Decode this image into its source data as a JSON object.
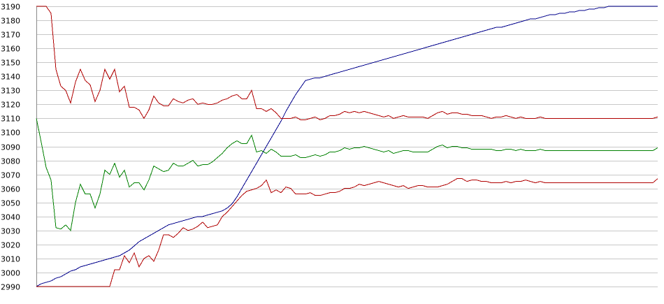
{
  "chart_data": {
    "type": "line",
    "title": "",
    "xlabel": "",
    "ylabel": "",
    "ylim": [
      2990,
      3190
    ],
    "yticks": [
      2990,
      3000,
      3010,
      3020,
      3030,
      3040,
      3050,
      3060,
      3070,
      3080,
      3090,
      3100,
      3110,
      3120,
      3130,
      3140,
      3150,
      3160,
      3170,
      3180,
      3190
    ],
    "grid": true,
    "legend": "none",
    "x": [
      0,
      1,
      2,
      3,
      4,
      5,
      6,
      7,
      8,
      9,
      10,
      11,
      12,
      13,
      14,
      15,
      16,
      17,
      18,
      19,
      20,
      21,
      22,
      23,
      24,
      25,
      26,
      27,
      28,
      29,
      30,
      31,
      32,
      33,
      34,
      35,
      36,
      37,
      38,
      39,
      40,
      41,
      42,
      43,
      44,
      45,
      46,
      47,
      48,
      49,
      50,
      51,
      52,
      53,
      54,
      55,
      56,
      57,
      58,
      59,
      60,
      61,
      62,
      63,
      64,
      65,
      66,
      67,
      68,
      69,
      70,
      71,
      72,
      73,
      74,
      75,
      76,
      77,
      78,
      79,
      80,
      81,
      82,
      83,
      84,
      85,
      86,
      87,
      88,
      89,
      90,
      91,
      92,
      93,
      94,
      95,
      96,
      97,
      98,
      99,
      100,
      101,
      102,
      103,
      104,
      105,
      106,
      107,
      108,
      109,
      110,
      111,
      112,
      113,
      114,
      115,
      116,
      117,
      118,
      119,
      120,
      121,
      122,
      123,
      124,
      125,
      126,
      127
    ],
    "series": [
      {
        "color": "#00008b",
        "values": [
          2990,
          2992,
          2993,
          2994,
          2996,
          2997,
          2999,
          3001,
          3002,
          3004,
          3005,
          3006,
          3007,
          3008,
          3009,
          3010,
          3011,
          3012,
          3014,
          3016,
          3019,
          3022,
          3024,
          3026,
          3028,
          3030,
          3032,
          3034,
          3035,
          3036,
          3037,
          3038,
          3039,
          3040,
          3040,
          3041,
          3042,
          3043,
          3044,
          3046,
          3049,
          3054,
          3060,
          3066,
          3072,
          3078,
          3084,
          3090,
          3096,
          3102,
          3108,
          3115,
          3121,
          3127,
          3132,
          3137,
          3138,
          3139,
          3139,
          3140,
          3141,
          3142,
          3143,
          3144,
          3145,
          3146,
          3147,
          3148,
          3149,
          3150,
          3151,
          3152,
          3153,
          3154,
          3155,
          3156,
          3157,
          3158,
          3159,
          3160,
          3161,
          3162,
          3163,
          3164,
          3165,
          3166,
          3167,
          3168,
          3169,
          3170,
          3171,
          3172,
          3173,
          3174,
          3175,
          3175,
          3176,
          3177,
          3178,
          3179,
          3180,
          3181,
          3181,
          3182,
          3183,
          3184,
          3184,
          3185,
          3185,
          3186,
          3186,
          3187,
          3187,
          3188,
          3188,
          3189,
          3189,
          3190,
          3190,
          3190,
          3190,
          3190,
          3190,
          3190,
          3190,
          3190,
          3190,
          3190
        ]
      },
      {
        "color": "#b00000",
        "values": [
          3190,
          3190,
          3190,
          3185,
          3145,
          3133,
          3130,
          3121,
          3136,
          3145,
          3137,
          3134,
          3122,
          3130,
          3145,
          3138,
          3145,
          3129,
          3133,
          3118,
          3118,
          3116,
          3110,
          3116,
          3126,
          3121,
          3119,
          3119,
          3124,
          3122,
          3121,
          3123,
          3124,
          3120,
          3121,
          3120,
          3120,
          3121,
          3123,
          3124,
          3126,
          3127,
          3124,
          3124,
          3130,
          3117,
          3117,
          3115,
          3117,
          3114,
          3110,
          3110,
          3110,
          3111,
          3109,
          3109,
          3110,
          3111,
          3109,
          3110,
          3112,
          3112,
          3113,
          3115,
          3114,
          3115,
          3114,
          3115,
          3114,
          3113,
          3112,
          3111,
          3112,
          3110,
          3111,
          3112,
          3111,
          3111,
          3111,
          3111,
          3110,
          3112,
          3114,
          3115,
          3113,
          3114,
          3114,
          3113,
          3113,
          3112,
          3112,
          3112,
          3111,
          3110,
          3111,
          3111,
          3112,
          3111,
          3110,
          3111,
          3110,
          3110,
          3110,
          3111,
          3110,
          3110,
          3110,
          3110,
          3110,
          3110,
          3110,
          3110,
          3110,
          3110,
          3110,
          3110,
          3110,
          3110,
          3110,
          3110,
          3110,
          3110,
          3110,
          3110,
          3110,
          3110,
          3110,
          3111
        ]
      },
      {
        "color": "#008000",
        "values": [
          3110,
          3093,
          3075,
          3066,
          3032,
          3031,
          3034,
          3030,
          3050,
          3063,
          3056,
          3056,
          3046,
          3056,
          3073,
          3070,
          3078,
          3068,
          3073,
          3061,
          3064,
          3064,
          3059,
          3066,
          3076,
          3074,
          3072,
          3073,
          3078,
          3076,
          3076,
          3078,
          3080,
          3076,
          3077,
          3077,
          3079,
          3082,
          3085,
          3089,
          3092,
          3094,
          3092,
          3092,
          3098,
          3086,
          3087,
          3085,
          3088,
          3086,
          3083,
          3083,
          3083,
          3084,
          3082,
          3082,
          3083,
          3084,
          3083,
          3084,
          3086,
          3086,
          3087,
          3089,
          3088,
          3089,
          3089,
          3090,
          3089,
          3088,
          3087,
          3086,
          3087,
          3085,
          3086,
          3087,
          3087,
          3086,
          3086,
          3086,
          3086,
          3088,
          3090,
          3091,
          3089,
          3090,
          3090,
          3089,
          3089,
          3088,
          3088,
          3088,
          3088,
          3088,
          3087,
          3087,
          3088,
          3088,
          3087,
          3088,
          3087,
          3087,
          3087,
          3088,
          3087,
          3087,
          3087,
          3087,
          3087,
          3087,
          3087,
          3087,
          3087,
          3087,
          3087,
          3087,
          3087,
          3087,
          3087,
          3087,
          3087,
          3087,
          3087,
          3087,
          3087,
          3087,
          3087,
          3089
        ]
      },
      {
        "color": "#b00000",
        "values": [
          2990,
          2990,
          2990,
          2990,
          2990,
          2990,
          2990,
          2990,
          2990,
          2990,
          2990,
          2990,
          2990,
          2990,
          2990,
          2990,
          3002,
          3002,
          3012,
          3007,
          3014,
          3004,
          3010,
          3012,
          3008,
          3016,
          3027,
          3027,
          3025,
          3028,
          3032,
          3030,
          3031,
          3033,
          3036,
          3032,
          3033,
          3034,
          3040,
          3043,
          3047,
          3051,
          3055,
          3058,
          3059,
          3060,
          3062,
          3066,
          3057,
          3059,
          3057,
          3061,
          3060,
          3056,
          3056,
          3056,
          3057,
          3055,
          3055,
          3056,
          3057,
          3057,
          3058,
          3060,
          3060,
          3061,
          3063,
          3062,
          3063,
          3064,
          3065,
          3064,
          3063,
          3062,
          3061,
          3062,
          3060,
          3061,
          3062,
          3062,
          3061,
          3061,
          3061,
          3062,
          3063,
          3065,
          3067,
          3067,
          3065,
          3066,
          3066,
          3065,
          3065,
          3064,
          3064,
          3064,
          3065,
          3064,
          3065,
          3065,
          3066,
          3065,
          3064,
          3065,
          3064,
          3064,
          3064,
          3064,
          3064,
          3064,
          3064,
          3064,
          3064,
          3064,
          3064,
          3064,
          3064,
          3064,
          3064,
          3064,
          3064,
          3064,
          3064,
          3064,
          3064,
          3064,
          3064,
          3067
        ]
      }
    ]
  }
}
